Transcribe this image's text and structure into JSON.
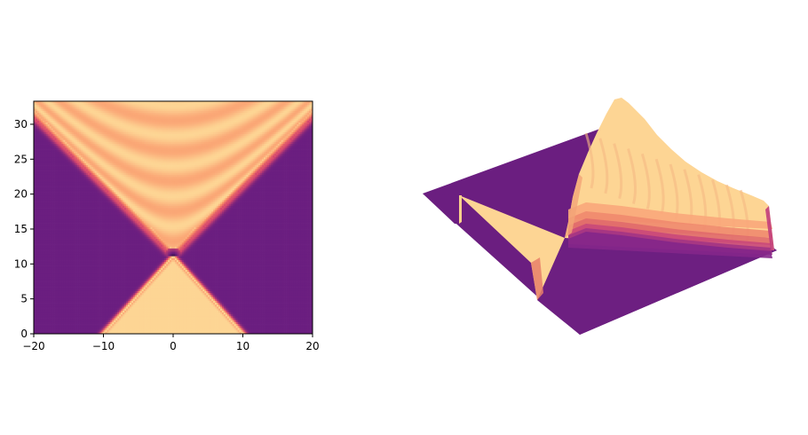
{
  "colors": {
    "background": "#ffffff",
    "axis": "#000000",
    "colormap": "magma",
    "low": "#6b1e80",
    "high": "#fdd594",
    "min": "#100a1f"
  },
  "chart_data": [
    {
      "type": "heatmap",
      "title": "",
      "xlabel": "",
      "ylabel": "",
      "xlim": [
        -20,
        20
      ],
      "ylim": [
        0,
        33.3
      ],
      "x_ticks": [
        -20,
        -10,
        0,
        10,
        20
      ],
      "x_tick_labels": [
        "−20",
        "−10",
        "0",
        "10",
        "20"
      ],
      "y_ticks": [
        0,
        5,
        10,
        15,
        20,
        25,
        30
      ],
      "y_tick_labels": [
        "0",
        "5",
        "10",
        "15",
        "20",
        "25",
        "30"
      ],
      "features": {
        "lower_triangle_base": [
          -10,
          10
        ],
        "apex": [
          0,
          11
        ],
        "upper_cone_slope": 1.0,
        "upper_cone_fringes": true
      },
      "colormap": "magma",
      "grid": false
    },
    {
      "type": "surface3d",
      "title": "",
      "axes_visible": false,
      "colormap": "magma",
      "description_source": "same field as heatmap, rendered as 3D surface"
    }
  ]
}
